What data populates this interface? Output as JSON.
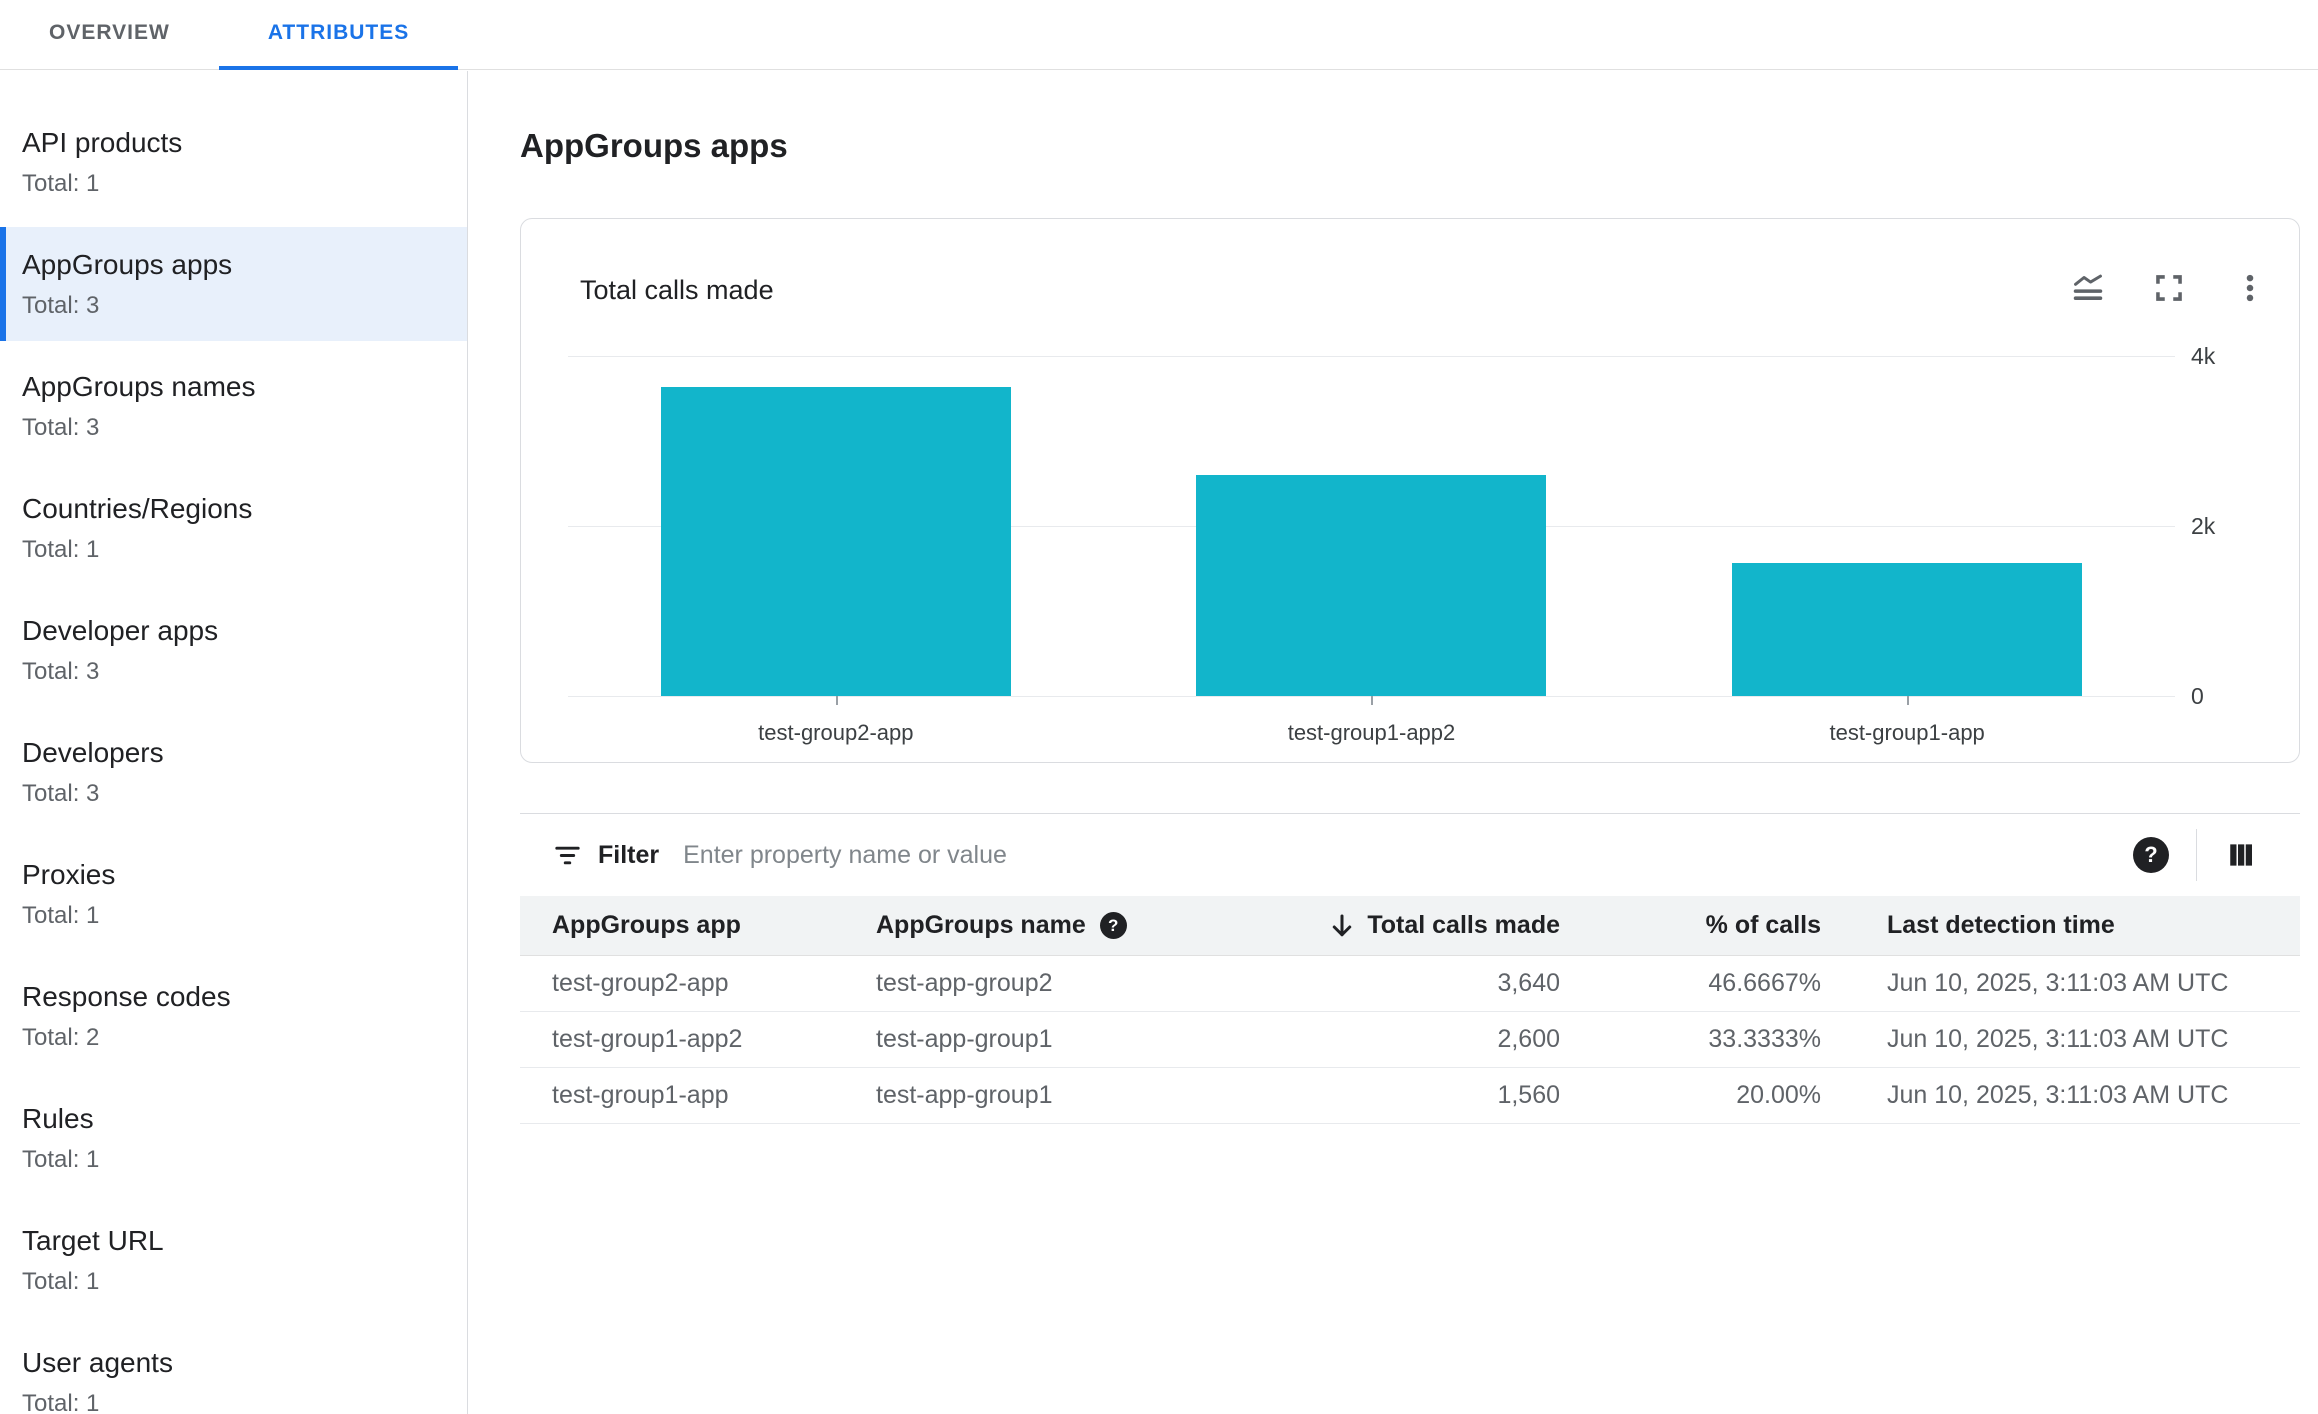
{
  "tabs": {
    "overview": "OVERVIEW",
    "attributes": "ATTRIBUTES"
  },
  "sidebar": {
    "items": [
      {
        "label": "API products",
        "total_label": "Total: 1",
        "selected": false
      },
      {
        "label": "AppGroups apps",
        "total_label": "Total: 3",
        "selected": true
      },
      {
        "label": "AppGroups names",
        "total_label": "Total: 3",
        "selected": false
      },
      {
        "label": "Countries/Regions",
        "total_label": "Total: 1",
        "selected": false
      },
      {
        "label": "Developer apps",
        "total_label": "Total: 3",
        "selected": false
      },
      {
        "label": "Developers",
        "total_label": "Total: 3",
        "selected": false
      },
      {
        "label": "Proxies",
        "total_label": "Total: 1",
        "selected": false
      },
      {
        "label": "Response codes",
        "total_label": "Total: 2",
        "selected": false
      },
      {
        "label": "Rules",
        "total_label": "Total: 1",
        "selected": false
      },
      {
        "label": "Target URL",
        "total_label": "Total: 1",
        "selected": false
      },
      {
        "label": "User agents",
        "total_label": "Total: 1",
        "selected": false
      }
    ]
  },
  "main": {
    "title": "AppGroups apps"
  },
  "chart_card": {
    "title": "Total calls made"
  },
  "chart_data": {
    "type": "bar",
    "title": "Total calls made",
    "categories": [
      "test-group2-app",
      "test-group1-app2",
      "test-group1-app"
    ],
    "values": [
      3640,
      2600,
      1560
    ],
    "xlabel": "",
    "ylabel": "",
    "ylim": [
      0,
      4000
    ],
    "yticks": [
      "4k",
      "2k",
      "0"
    ],
    "bar_color": "#12b5cb",
    "grid": true,
    "legend": false
  },
  "filter": {
    "label": "Filter",
    "placeholder": "Enter property name or value"
  },
  "table": {
    "columns": [
      {
        "label": "AppGroups app"
      },
      {
        "label": "AppGroups name",
        "help_icon": true
      },
      {
        "label": "Total calls made",
        "sorted": "desc"
      },
      {
        "label": "% of calls"
      },
      {
        "label": "Last detection time"
      }
    ],
    "rows": [
      [
        "test-group2-app",
        "test-app-group2",
        "3,640",
        "46.6667%",
        "Jun 10, 2025, 3:11:03 AM UTC"
      ],
      [
        "test-group1-app2",
        "test-app-group1",
        "2,600",
        "33.3333%",
        "Jun 10, 2025, 3:11:03 AM UTC"
      ],
      [
        "test-group1-app",
        "test-app-group1",
        "1,560",
        "20.00%",
        "Jun 10, 2025, 3:11:03 AM UTC"
      ]
    ]
  },
  "icons": {
    "help_glyph": "?"
  },
  "colors": {
    "accent": "#1a73e8",
    "bar": "#12b5cb",
    "selected_bg": "#e8f0fb",
    "header_bg": "#f1f3f4"
  }
}
